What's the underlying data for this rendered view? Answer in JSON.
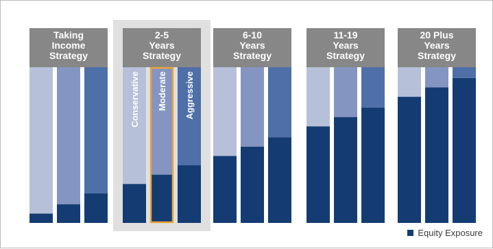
{
  "colors": {
    "conservative": "#b7c0d9",
    "moderate": "#8595c2",
    "aggressive": "#4e6fa8",
    "equity": "#143c72",
    "header": "#878787",
    "highlight_panel": "#e0e0e0",
    "highlight_outline": "#e7a53a"
  },
  "chart_data": {
    "type": "bar",
    "subtype": "stacked-100",
    "groups": [
      {
        "label": "Taking\nIncome\nStrategy"
      },
      {
        "label": "2-5\nYears\nStrategy",
        "highlighted": true
      },
      {
        "label": "6-10\nYears\nStrategy"
      },
      {
        "label": "11-19\nYears\nStrategy"
      },
      {
        "label": "20 Plus\nYears\nStrategy"
      }
    ],
    "portfolio_labels": [
      "Conservative",
      "Moderate",
      "Aggressive"
    ],
    "highlighted_portfolio": "Moderate",
    "equity_exposure_fraction": [
      [
        0.06,
        0.12,
        0.19
      ],
      [
        0.25,
        0.31,
        0.37
      ],
      [
        0.43,
        0.49,
        0.55
      ],
      [
        0.62,
        0.68,
        0.74
      ],
      [
        0.81,
        0.87,
        0.93
      ]
    ],
    "legend": {
      "label": "Equity Exposure",
      "position": "bottom-right"
    }
  }
}
